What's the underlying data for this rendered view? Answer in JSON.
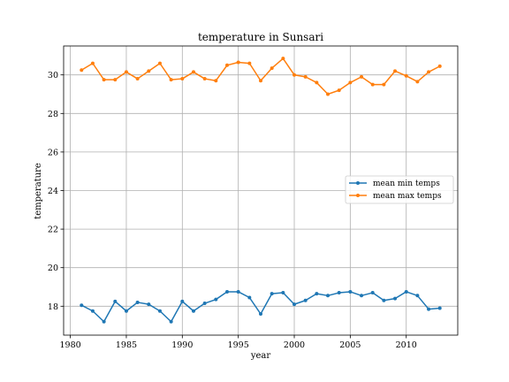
{
  "chart_data": {
    "type": "line",
    "title": "temperature in Sunsari",
    "xlabel": "year",
    "ylabel": "temperature",
    "xlim": [
      1979.4,
      2014.6
    ],
    "ylim": [
      16.5,
      31.5
    ],
    "xticks": [
      1980,
      1985,
      1990,
      1995,
      2000,
      2005,
      2010
    ],
    "yticks": [
      18,
      20,
      22,
      24,
      26,
      28,
      30
    ],
    "grid": true,
    "legend_position": "center-right",
    "x": [
      1981,
      1982,
      1983,
      1984,
      1985,
      1986,
      1987,
      1988,
      1989,
      1990,
      1991,
      1992,
      1993,
      1994,
      1995,
      1996,
      1997,
      1998,
      1999,
      2000,
      2001,
      2002,
      2003,
      2004,
      2005,
      2006,
      2007,
      2008,
      2009,
      2010,
      2011,
      2012,
      2013
    ],
    "series": [
      {
        "name": "mean min temps",
        "color": "#1f77b4",
        "values": [
          18.05,
          17.75,
          17.2,
          18.25,
          17.75,
          18.2,
          18.1,
          17.75,
          17.2,
          18.25,
          17.75,
          18.15,
          18.35,
          18.75,
          18.75,
          18.45,
          17.6,
          18.65,
          18.7,
          18.1,
          18.3,
          18.65,
          18.55,
          18.7,
          18.75,
          18.55,
          18.7,
          18.3,
          18.4,
          18.75,
          18.55,
          17.85,
          17.9
        ]
      },
      {
        "name": "mean max temps",
        "color": "#ff7f0e",
        "values": [
          30.25,
          30.6,
          29.75,
          29.75,
          30.15,
          29.8,
          30.2,
          30.6,
          29.75,
          29.8,
          30.15,
          29.8,
          29.7,
          30.5,
          30.65,
          30.6,
          29.7,
          30.35,
          30.85,
          30.0,
          29.9,
          29.6,
          29.0,
          29.2,
          29.6,
          29.9,
          29.5,
          29.5,
          30.2,
          29.95,
          29.65,
          30.15,
          30.45
        ]
      }
    ]
  }
}
